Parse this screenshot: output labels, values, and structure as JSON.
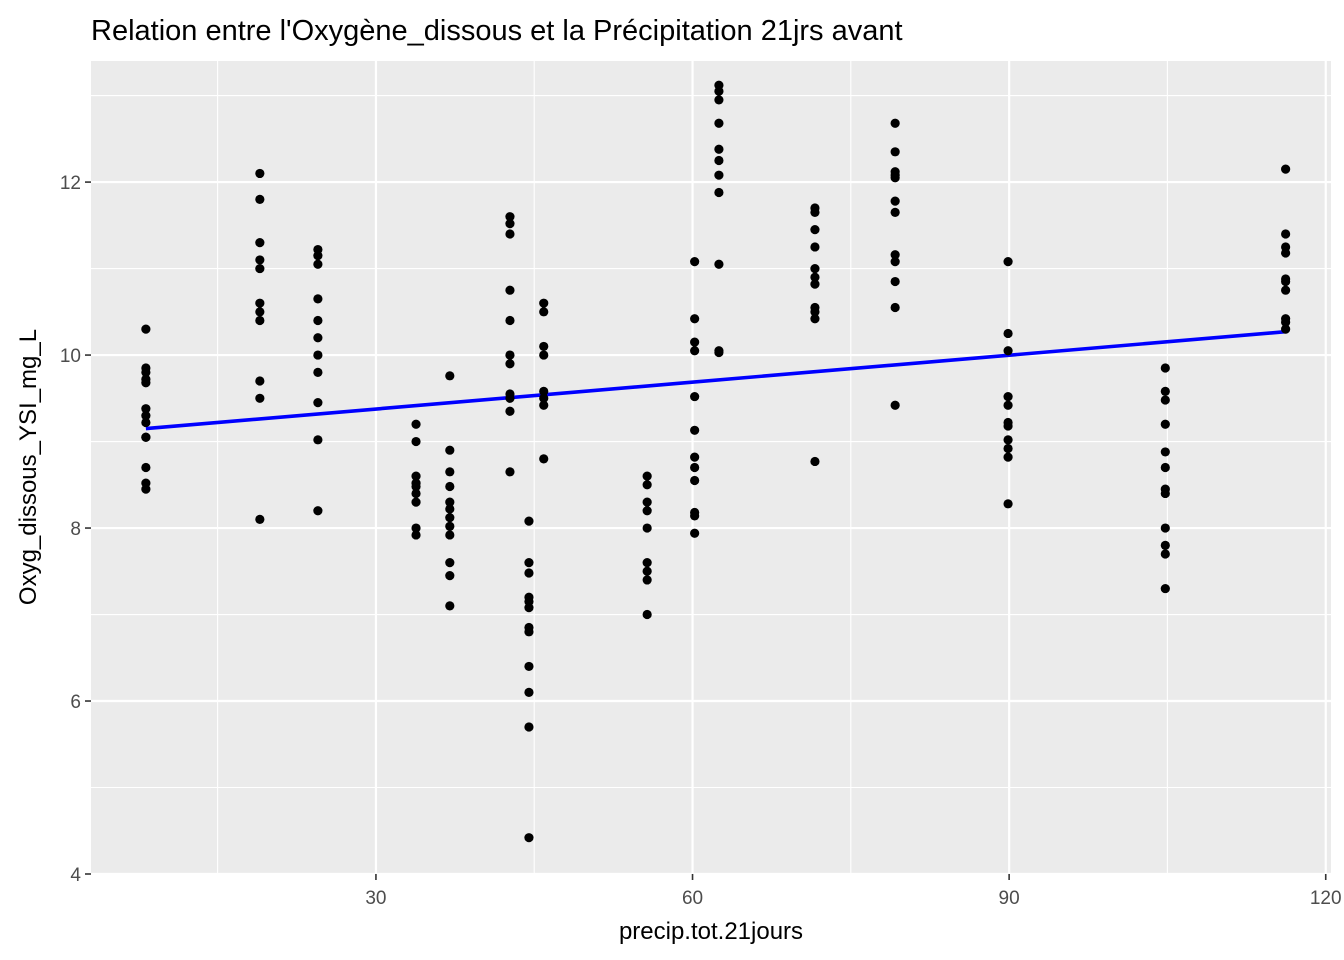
{
  "chart_data": {
    "type": "scatter",
    "title": "Relation entre l'Oxygène_dissous et la Précipitation 21jrs avant",
    "xlabel": "precip.tot.21jours",
    "ylabel": "Oxyg_dissous_YSI_mg_L",
    "xlim": [
      3,
      120.5
    ],
    "ylim": [
      4,
      13.4
    ],
    "x_ticks": [
      30,
      60,
      90,
      120
    ],
    "y_ticks": [
      4,
      6,
      8,
      10,
      12
    ],
    "x_tick_labels": [
      "30",
      "60",
      "90",
      "120"
    ],
    "y_tick_labels": [
      "4",
      "6",
      "8",
      "10",
      "12"
    ],
    "grid": true,
    "legend": "none",
    "colors": {
      "panel": "#ebebeb",
      "grid": "#ffffff",
      "points": "#000000",
      "trend": "#0000ff",
      "tick_text": "#4d4d4d"
    },
    "series": [
      {
        "kind": "points",
        "groups": [
          {
            "x": 8.2,
            "y": [
              10.3,
              9.85,
              9.8,
              9.72,
              9.68,
              9.38,
              9.3,
              9.22,
              9.05,
              9.05,
              8.7,
              8.52,
              8.45
            ]
          },
          {
            "x": 19.0,
            "y": [
              12.1,
              11.8,
              11.3,
              11.1,
              11.0,
              10.6,
              10.5,
              10.4,
              9.7,
              9.5,
              8.1
            ]
          },
          {
            "x": 24.5,
            "y": [
              11.22,
              11.15,
              11.05,
              10.65,
              10.4,
              10.2,
              10.0,
              9.8,
              9.45,
              9.02,
              8.2
            ]
          },
          {
            "x": 33.8,
            "y": [
              9.2,
              9.0,
              8.6,
              8.52,
              8.48,
              8.4,
              8.3,
              8.0,
              7.92
            ]
          },
          {
            "x": 37.0,
            "y": [
              9.76,
              8.9,
              8.65,
              8.48,
              8.3,
              8.22,
              8.12,
              8.02,
              7.92,
              7.6,
              7.45,
              7.1
            ]
          },
          {
            "x": 42.7,
            "y": [
              11.6,
              11.52,
              11.4,
              10.75,
              10.4,
              10.0,
              9.9,
              9.55,
              9.5,
              9.35,
              8.65
            ]
          },
          {
            "x": 44.5,
            "y": [
              8.08,
              7.6,
              7.48,
              7.2,
              7.15,
              7.08,
              6.85,
              6.8,
              6.4,
              6.1,
              5.7,
              4.42
            ]
          },
          {
            "x": 45.9,
            "y": [
              10.6,
              10.5,
              10.1,
              10.0,
              9.58,
              9.5,
              9.42,
              8.8
            ]
          },
          {
            "x": 55.7,
            "y": [
              8.6,
              8.5,
              8.3,
              8.2,
              8.0,
              7.6,
              7.5,
              7.4,
              7.0
            ]
          },
          {
            "x": 60.2,
            "y": [
              11.08,
              10.42,
              10.15,
              10.05,
              9.52,
              9.13,
              8.82,
              8.7,
              8.55,
              8.18,
              8.14,
              7.94
            ]
          },
          {
            "x": 62.5,
            "y": [
              13.12,
              13.05,
              12.95,
              12.68,
              12.38,
              12.25,
              12.08,
              11.88,
              11.05,
              10.05,
              10.03
            ]
          },
          {
            "x": 71.6,
            "y": [
              11.7,
              11.65,
              11.45,
              11.25,
              11.0,
              10.9,
              10.82,
              10.55,
              10.5,
              10.42,
              8.77
            ]
          },
          {
            "x": 79.2,
            "y": [
              12.68,
              12.35,
              12.12,
              12.08,
              12.05,
              11.78,
              11.65,
              11.16,
              11.08,
              10.85,
              10.55,
              9.42
            ]
          },
          {
            "x": 89.9,
            "y": [
              11.08,
              10.25,
              10.05,
              9.52,
              9.42,
              9.22,
              9.18,
              9.02,
              8.92,
              8.82,
              8.28
            ]
          },
          {
            "x": 104.8,
            "y": [
              9.85,
              9.58,
              9.48,
              9.2,
              8.88,
              8.7,
              8.45,
              8.4,
              8.0,
              7.8,
              7.7,
              7.3
            ]
          },
          {
            "x": 116.2,
            "y": [
              12.15,
              11.4,
              11.25,
              11.18,
              10.88,
              10.85,
              10.75,
              10.42,
              10.38,
              10.3
            ]
          }
        ]
      },
      {
        "kind": "trend",
        "x": [
          8.2,
          116.2
        ],
        "y": [
          9.15,
          10.27
        ]
      }
    ]
  }
}
